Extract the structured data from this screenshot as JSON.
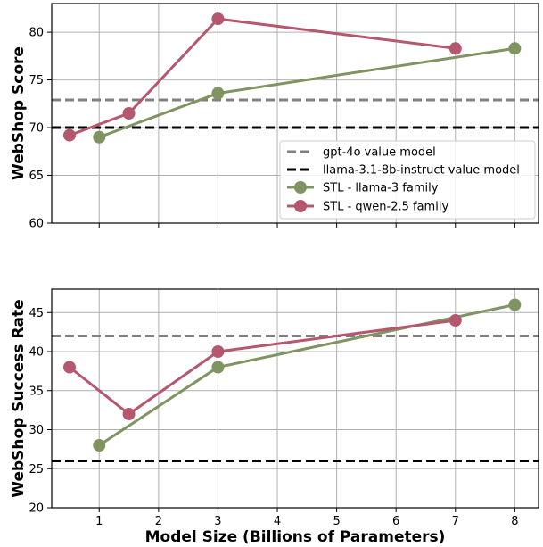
{
  "chart_data": [
    {
      "type": "line",
      "title": "",
      "xlabel": "",
      "ylabel": "WebShop Score",
      "xlim": [
        0.2,
        8.4
      ],
      "ylim": [
        60,
        83
      ],
      "xticks": [
        1,
        2,
        3,
        4,
        5,
        6,
        7,
        8
      ],
      "yticks": [
        60,
        65,
        70,
        75,
        80
      ],
      "grid": true,
      "legend_position": "lower-right",
      "series": [
        {
          "name": "STL - llama-3 family",
          "color": "#7f9460",
          "x": [
            1,
            3,
            8
          ],
          "y": [
            69.0,
            73.6,
            78.3
          ]
        },
        {
          "name": "STL - qwen-2.5 family",
          "color": "#b5576e",
          "x": [
            0.5,
            1.5,
            3,
            7
          ],
          "y": [
            69.2,
            71.5,
            81.4,
            78.3
          ]
        }
      ],
      "reference_lines": [
        {
          "name": "gpt-4o value model",
          "value": 72.9,
          "color": "#808080",
          "style": "dashed"
        },
        {
          "name": "llama-3.1-8b-instruct value model",
          "value": 70.0,
          "color": "#000000",
          "style": "dashed"
        }
      ]
    },
    {
      "type": "line",
      "title": "",
      "xlabel": "Model Size (Billions of Parameters)",
      "ylabel": "WebShop Success Rate",
      "xlim": [
        0.2,
        8.4
      ],
      "ylim": [
        20,
        48
      ],
      "xticks": [
        1,
        2,
        3,
        4,
        5,
        6,
        7,
        8
      ],
      "yticks": [
        20,
        25,
        30,
        35,
        40,
        45
      ],
      "grid": true,
      "series": [
        {
          "name": "STL - llama-3 family",
          "color": "#7f9460",
          "x": [
            1,
            3,
            8
          ],
          "y": [
            28,
            38,
            46
          ]
        },
        {
          "name": "STL - qwen-2.5 family",
          "color": "#b5576e",
          "x": [
            0.5,
            1.5,
            3,
            7
          ],
          "y": [
            38,
            32,
            40,
            44
          ]
        }
      ],
      "reference_lines": [
        {
          "name": "gpt-4o value model",
          "value": 42,
          "color": "#808080",
          "style": "dashed"
        },
        {
          "name": "llama-3.1-8b-instruct value model",
          "value": 26,
          "color": "#000000",
          "style": "dashed"
        }
      ]
    }
  ]
}
